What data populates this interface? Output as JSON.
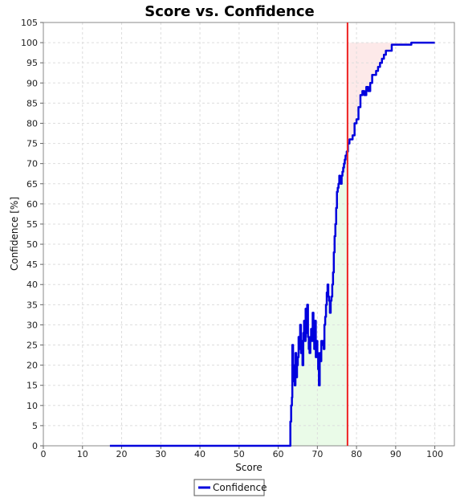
{
  "chart_data": {
    "type": "line",
    "title": "Score vs. Confidence",
    "xlabel": "Score",
    "ylabel": "Confidence [%]",
    "xlim": [
      0,
      105
    ],
    "ylim": [
      0,
      105
    ],
    "x_ticks": [
      0,
      10,
      20,
      30,
      40,
      50,
      60,
      70,
      80,
      90,
      100
    ],
    "y_ticks": [
      0,
      5,
      10,
      15,
      20,
      25,
      30,
      35,
      40,
      45,
      50,
      55,
      60,
      65,
      70,
      75,
      80,
      85,
      90,
      95,
      100,
      105
    ],
    "grid": true,
    "legend_position": "bottom-center",
    "threshold_x": 77.7,
    "colors": {
      "series": "#0000dd",
      "threshold": "#ee2222",
      "below_threshold_fill": "#eafbe8",
      "above_threshold_fill": "#fde9e9",
      "grid": "#dddddd"
    },
    "series": [
      {
        "name": "Confidence",
        "x": [
          17,
          30,
          50,
          63,
          63.1,
          63.3,
          63.5,
          63.6,
          63.8,
          64.0,
          64.2,
          64.4,
          64.6,
          64.8,
          65.0,
          65.2,
          65.4,
          65.6,
          65.8,
          66.0,
          66.2,
          66.4,
          66.6,
          66.8,
          67.0,
          67.2,
          67.4,
          67.6,
          67.8,
          68.0,
          68.2,
          68.4,
          68.6,
          68.8,
          69.0,
          69.2,
          69.4,
          69.6,
          69.8,
          70.0,
          70.2,
          70.4,
          70.6,
          70.8,
          71.0,
          71.2,
          71.4,
          71.6,
          71.8,
          72.0,
          72.2,
          72.4,
          72.6,
          72.8,
          73.0,
          73.2,
          73.4,
          73.6,
          73.8,
          74.0,
          74.2,
          74.4,
          74.6,
          74.8,
          75.0,
          75.2,
          75.4,
          75.6,
          75.8,
          76.0,
          76.2,
          76.4,
          76.6,
          76.8,
          77.0,
          77.2,
          77.5,
          77.8,
          78.2,
          78.5,
          79.0,
          79.5,
          80.0,
          80.5,
          81.0,
          81.5,
          82.0,
          82.5,
          83.0,
          83.5,
          84.0,
          84.5,
          85.0,
          85.5,
          86.0,
          86.5,
          87.0,
          87.5,
          88.0,
          88.5,
          89.0,
          90.0,
          91.0,
          93.0,
          94.0,
          100.0
        ],
        "values": [
          0,
          0,
          0,
          0,
          6,
          10,
          12,
          25,
          20,
          16,
          15,
          23,
          17,
          20,
          22,
          27,
          24,
          30,
          23,
          26,
          20,
          28,
          31,
          26,
          34,
          28,
          35,
          27,
          24,
          23,
          27,
          29,
          26,
          33,
          28,
          24,
          31,
          22,
          26,
          23,
          19,
          15,
          23,
          21,
          26,
          25,
          26,
          24,
          30,
          32,
          35,
          38,
          40,
          37,
          36,
          33,
          36,
          37,
          40,
          43,
          48,
          52,
          55,
          59,
          63,
          64,
          65,
          67,
          66,
          65,
          67,
          68,
          69,
          70,
          71,
          72,
          73,
          75,
          76,
          76,
          77,
          80,
          81,
          84,
          87,
          88,
          87,
          89,
          88,
          90,
          92,
          92,
          93,
          94,
          95,
          96,
          97,
          98,
          98,
          98,
          99.5,
          99.5,
          99.5,
          99.5,
          100,
          100
        ]
      }
    ]
  }
}
